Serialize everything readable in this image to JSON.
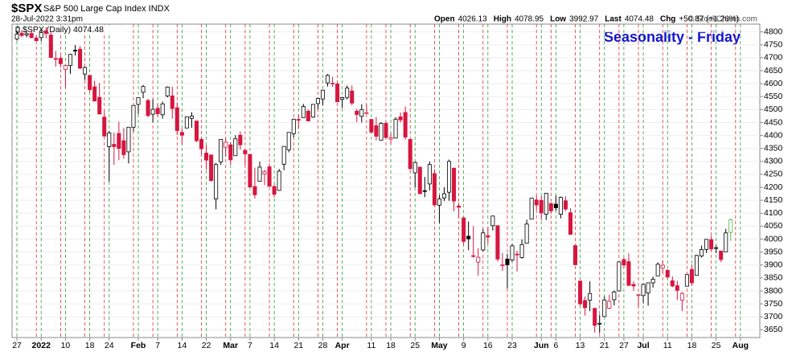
{
  "chart_data": {
    "type": "candlestick",
    "symbol": "$SPX",
    "name": "S&P 500 Large Cap Index INDX",
    "timestamp": "28-Jul-2022 3:31pm",
    "quote": [
      {
        "label": "Open",
        "value": 4026.13
      },
      {
        "label": "High",
        "value": 4078.95
      },
      {
        "label": "Low",
        "value": 3992.97
      },
      {
        "label": "Last",
        "value": 4074.48
      },
      {
        "label": "Chg",
        "value": "+50.87 (+1.26%)"
      }
    ],
    "source": "© StockCharts.com",
    "legend": "$SPX (Daily) 4074.48",
    "annotation": "Seasonality - Friday",
    "up_color": "#000000",
    "down_color": "#d6163f",
    "last_color": "#55b543",
    "week_start_color": "#2e9e2e",
    "week_end_color": "#e03030",
    "open": [
      4773,
      4795,
      4788,
      4794,
      4776,
      4778,
      4804,
      4788,
      4697,
      4698,
      4655,
      4670,
      4729,
      4733,
      4637,
      4632,
      4588,
      4547,
      4471,
      4357,
      4366,
      4408,
      4380,
      4337,
      4432,
      4520,
      4567,
      4535,
      4482,
      4505,
      4480,
      4553,
      4553,
      4507,
      4412,
      4429,
      4466,
      4456,
      4385,
      4332,
      4325,
      4155,
      4298,
      4355,
      4364,
      4322,
      4401,
      4343,
      4327,
      4203,
      4223,
      4252,
      4279,
      4203,
      4188,
      4289,
      4345,
      4407,
      4462,
      4469,
      4494,
      4471,
      4523,
      4541,
      4603,
      4600,
      4599,
      4540,
      4547,
      4572,
      4494,
      4474,
      4485,
      4462,
      4438,
      4382,
      4447,
      4386,
      4390,
      4472,
      4489,
      4385,
      4256,
      4278,
      4187,
      4213,
      4253,
      4131,
      4159,
      4181,
      4274,
      4128,
      4082,
      4011,
      3936,
      3911,
      3958,
      4013,
      4052,
      4052,
      3900,
      3923,
      3919,
      3942,
      3929,
      3984,
      4077,
      4151,
      4149,
      4096,
      4137,
      4135,
      4096,
      4148,
      4102,
      3975,
      3838,
      3763,
      3764,
      3733,
      3675,
      3701,
      3733,
      3766,
      3800,
      3921,
      3913,
      3825,
      3785,
      3782,
      3792,
      3831,
      3858,
      3888,
      3880,
      3839,
      3820,
      3764,
      3818,
      3883,
      3860,
      3935,
      3960,
      3998,
      3965,
      3954,
      3951,
      4026.13
    ],
    "high": [
      4804,
      4807,
      4804,
      4808,
      4787,
      4807,
      4819,
      4798,
      4726,
      4708,
      4673,
      4715,
      4749,
      4745,
      4666,
      4632,
      4611,
      4603,
      4495,
      4418,
      4411,
      4453,
      4429,
      4432,
      4517,
      4546,
      4595,
      4542,
      4540,
      4521,
      4531,
      4590,
      4588,
      4527,
      4426,
      4472,
      4490,
      4456,
      4394,
      4363,
      4326,
      4294,
      4385,
      4389,
      4375,
      4401,
      4416,
      4343,
      4327,
      4276,
      4299,
      4268,
      4292,
      4209,
      4271,
      4358,
      4412,
      4465,
      4481,
      4522,
      4501,
      4521,
      4546,
      4575,
      4637,
      4627,
      4603,
      4549,
      4593,
      4593,
      4503,
      4521,
      4521,
      4464,
      4471,
      4452,
      4453,
      4410,
      4471,
      4489,
      4512,
      4385,
      4299,
      4278,
      4240,
      4300,
      4270,
      4170,
      4200,
      4307,
      4276,
      4140,
      4082,
      4068,
      4050,
      3965,
      4039,
      4046,
      4091,
      4052,
      3946,
      3944,
      3982,
      3955,
      3999,
      4075,
      4158,
      4169,
      4166,
      4178,
      4142,
      4168,
      4164,
      4165,
      4119,
      3975,
      3838,
      3778,
      3837,
      3733,
      3708,
      3779,
      3785,
      3802,
      3913,
      3928,
      3945,
      3837,
      3789,
      3829,
      3832,
      3855,
      3910,
      3918,
      3880,
      3856,
      3839,
      3796,
      3863,
      3902,
      3939,
      3975,
      4000,
      4013,
      3975,
      3954,
      4040,
      4078.95
    ],
    "low": [
      4766,
      4780,
      4779,
      4775,
      4765,
      4765,
      4775,
      4700,
      4666,
      4663,
      4582,
      4638,
      4709,
      4656,
      4614,
      4568,
      4532,
      4481,
      4395,
      4222,
      4287,
      4305,
      4310,
      4292,
      4415,
      4483,
      4544,
      4470,
      4451,
      4471,
      4465,
      4547,
      4465,
      4402,
      4364,
      4429,
      4430,
      4374,
      4328,
      4268,
      4222,
      4115,
      4286,
      4318,
      4287,
      4322,
      4345,
      4284,
      4199,
      4157,
      4223,
      4209,
      4202,
      4161,
      4187,
      4266,
      4335,
      4393,
      4425,
      4469,
      4455,
      4468,
      4502,
      4517,
      4589,
      4588,
      4530,
      4506,
      4539,
      4517,
      4451,
      4450,
      4484,
      4408,
      4381,
      4381,
      4392,
      4367,
      4390,
      4450,
      4384,
      4267,
      4200,
      4175,
      4162,
      4188,
      4128,
      4062,
      4147,
      4148,
      4107,
      4081,
      3976,
      3957,
      3928,
      3859,
      3954,
      3983,
      4033,
      3913,
      3877,
      3810,
      3913,
      3875,
      3925,
      3984,
      4077,
      4113,
      4073,
      4074,
      4098,
      4110,
      4080,
      4108,
      4017,
      3900,
      3743,
      3705,
      3722,
      3639,
      3637,
      3701,
      3729,
      3744,
      3800,
      3889,
      3820,
      3800,
      3738,
      3752,
      3743,
      3813,
      3858,
      3869,
      3847,
      3814,
      3765,
      3722,
      3817,
      3819,
      3860,
      3929,
      3946,
      3955,
      3946,
      3911,
      3951,
      3992.97
    ],
    "close": [
      4791,
      4786,
      4793,
      4778,
      4766,
      4797,
      4794,
      4701,
      4696,
      4677,
      4670,
      4713,
      4726,
      4660,
      4663,
      4577,
      4533,
      4483,
      4398,
      4410,
      4357,
      4350,
      4326,
      4432,
      4516,
      4546,
      4589,
      4477,
      4501,
      4484,
      4522,
      4587,
      4504,
      4419,
      4401,
      4472,
      4475,
      4380,
      4349,
      4305,
      4226,
      4288,
      4385,
      4374,
      4306,
      4387,
      4364,
      4329,
      4201,
      4171,
      4278,
      4260,
      4204,
      4173,
      4262,
      4358,
      4412,
      4463,
      4461,
      4512,
      4456,
      4520,
      4543,
      4575,
      4632,
      4602,
      4530,
      4546,
      4583,
      4525,
      4481,
      4500,
      4488,
      4413,
      4397,
      4447,
      4392,
      4391,
      4463,
      4460,
      4394,
      4272,
      4296,
      4175,
      4184,
      4288,
      4132,
      4155,
      4175,
      4300,
      4147,
      4123,
      3991,
      4001,
      3935,
      3930,
      4024,
      4008,
      4089,
      3923,
      3901,
      3901,
      3974,
      3941,
      3979,
      4058,
      4158,
      4132,
      4101,
      4177,
      4109,
      4121,
      4161,
      4116,
      4018,
      3901,
      3750,
      3735,
      3790,
      3667,
      3675,
      3765,
      3760,
      3796,
      3912,
      3900,
      3821,
      3819,
      3785,
      3825,
      3831,
      3845,
      3903,
      3899,
      3854,
      3819,
      3802,
      3790,
      3863,
      3831,
      3937,
      3960,
      3999,
      3962,
      3967,
      3921,
      4024,
      4074.48
    ],
    "xlim": [
      -1,
      153
    ],
    "xticks": [
      {
        "value": 0,
        "label": "27"
      },
      {
        "value": 5,
        "label": "2022"
      },
      {
        "value": 10,
        "label": "10"
      },
      {
        "value": 15,
        "label": "18"
      },
      {
        "value": 19,
        "label": "24"
      },
      {
        "value": 25,
        "label": "Feb"
      },
      {
        "value": 29,
        "label": "7"
      },
      {
        "value": 34,
        "label": "14"
      },
      {
        "value": 39,
        "label": "22"
      },
      {
        "value": 44,
        "label": "Mar"
      },
      {
        "value": 48,
        "label": "7"
      },
      {
        "value": 53,
        "label": "14"
      },
      {
        "value": 58,
        "label": "21"
      },
      {
        "value": 63,
        "label": "28"
      },
      {
        "value": 67,
        "label": "Apr"
      },
      {
        "value": 73,
        "label": "11"
      },
      {
        "value": 77,
        "label": "18"
      },
      {
        "value": 82,
        "label": "25"
      },
      {
        "value": 87,
        "label": "May"
      },
      {
        "value": 92,
        "label": "9"
      },
      {
        "value": 97,
        "label": "16"
      },
      {
        "value": 102,
        "label": "23"
      },
      {
        "value": 108,
        "label": "Jun"
      },
      {
        "value": 111,
        "label": "6"
      },
      {
        "value": 116,
        "label": "13"
      },
      {
        "value": 121,
        "label": "21"
      },
      {
        "value": 125,
        "label": "27"
      },
      {
        "value": 129,
        "label": "Jul"
      },
      {
        "value": 134,
        "label": "11"
      },
      {
        "value": 139,
        "label": "18"
      },
      {
        "value": 144,
        "label": "25"
      },
      {
        "value": 149,
        "label": "Aug"
      }
    ],
    "ylim": [
      3620,
      4830
    ],
    "yticks": [
      3650,
      3700,
      3750,
      3800,
      3850,
      3900,
      3950,
      4000,
      4050,
      4100,
      4150,
      4200,
      4250,
      4300,
      4350,
      4400,
      4450,
      4500,
      4550,
      4600,
      4650,
      4700,
      4750,
      4800
    ]
  }
}
